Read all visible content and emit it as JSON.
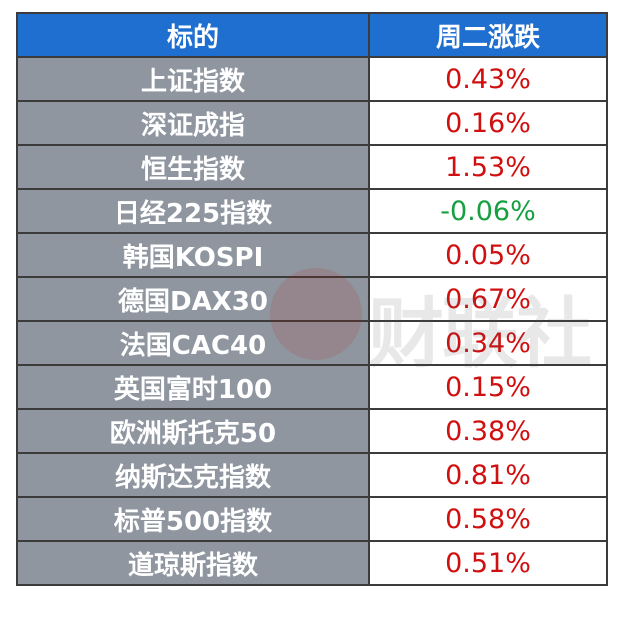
{
  "header": {
    "col_name": "标的",
    "col_change": "周二涨跌"
  },
  "rows": [
    {
      "name": "上证指数",
      "change": "0.43%",
      "trend": "up"
    },
    {
      "name": "深证成指",
      "change": "0.16%",
      "trend": "up"
    },
    {
      "name": "恒生指数",
      "change": "1.53%",
      "trend": "up"
    },
    {
      "name": "日经225指数",
      "change": "-0.06%",
      "trend": "down"
    },
    {
      "name": "韩国KOSPI",
      "change": "0.05%",
      "trend": "up"
    },
    {
      "name": "德国DAX30",
      "change": "0.67%",
      "trend": "up"
    },
    {
      "name": "法国CAC40",
      "change": "0.34%",
      "trend": "up"
    },
    {
      "name": "英国富时100",
      "change": "0.15%",
      "trend": "up"
    },
    {
      "name": "欧洲斯托克50",
      "change": "0.38%",
      "trend": "up"
    },
    {
      "name": "纳斯达克指数",
      "change": "0.81%",
      "trend": "up"
    },
    {
      "name": "标普500指数",
      "change": "0.58%",
      "trend": "up"
    },
    {
      "name": "道琼斯指数",
      "change": "0.51%",
      "trend": "up"
    }
  ],
  "watermark": {
    "text": "财联社"
  },
  "colors": {
    "header_bg": "#1f6fd1",
    "name_bg": "#8f96a0",
    "up": "#d01010",
    "down": "#16a040"
  }
}
